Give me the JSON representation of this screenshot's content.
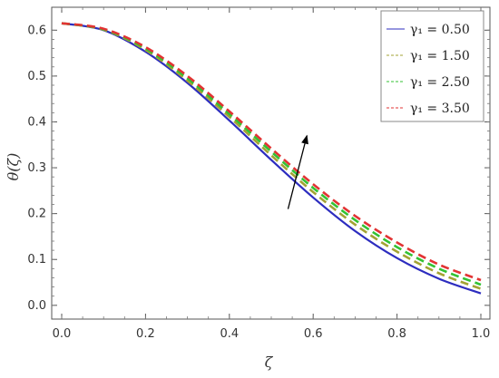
{
  "chart_data": {
    "type": "line",
    "title": "",
    "xlabel": "ζ",
    "ylabel": "θ(ζ)",
    "xlim": [
      0.0,
      1.0
    ],
    "ylim": [
      -0.03,
      0.65
    ],
    "x_ticks": [
      0.0,
      0.2,
      0.4,
      0.6,
      0.8,
      1.0
    ],
    "x_tick_labels": [
      "0.0",
      "0.2",
      "0.4",
      "0.6",
      "0.8",
      "1.0"
    ],
    "y_ticks": [
      0.0,
      0.1,
      0.2,
      0.3,
      0.4,
      0.5,
      0.6
    ],
    "y_tick_labels": [
      "0.0",
      "0.1",
      "0.2",
      "0.3",
      "0.4",
      "0.5",
      "0.6"
    ],
    "grid": false,
    "legend_position": "top-right",
    "x": [
      0.0,
      0.1,
      0.2,
      0.3,
      0.4,
      0.5,
      0.6,
      0.7,
      0.8,
      0.9,
      1.0
    ],
    "series": [
      {
        "name": "γ₁ = 0.50",
        "color": "#2d2dbf",
        "line_style": "solid",
        "values": [
          0.615,
          0.6,
          0.553,
          0.485,
          0.403,
          0.317,
          0.235,
          0.162,
          0.103,
          0.058,
          0.026
        ]
      },
      {
        "name": "γ₁ = 1.50",
        "color": "#a3a333",
        "line_style": "dashed",
        "values": [
          0.615,
          0.601,
          0.557,
          0.49,
          0.411,
          0.327,
          0.247,
          0.176,
          0.117,
          0.07,
          0.036
        ]
      },
      {
        "name": "γ₁ = 2.50",
        "color": "#33c233",
        "line_style": "dashed",
        "values": [
          0.615,
          0.602,
          0.56,
          0.495,
          0.417,
          0.335,
          0.256,
          0.186,
          0.127,
          0.08,
          0.045
        ]
      },
      {
        "name": "γ₁ = 3.50",
        "color": "#e23333",
        "line_style": "dashed",
        "values": [
          0.615,
          0.603,
          0.563,
          0.5,
          0.423,
          0.342,
          0.264,
          0.195,
          0.137,
          0.089,
          0.055
        ]
      }
    ],
    "annotations": [
      {
        "type": "arrow",
        "from": [
          0.54,
          0.21
        ],
        "to": [
          0.585,
          0.37
        ],
        "color": "#000000"
      }
    ]
  }
}
